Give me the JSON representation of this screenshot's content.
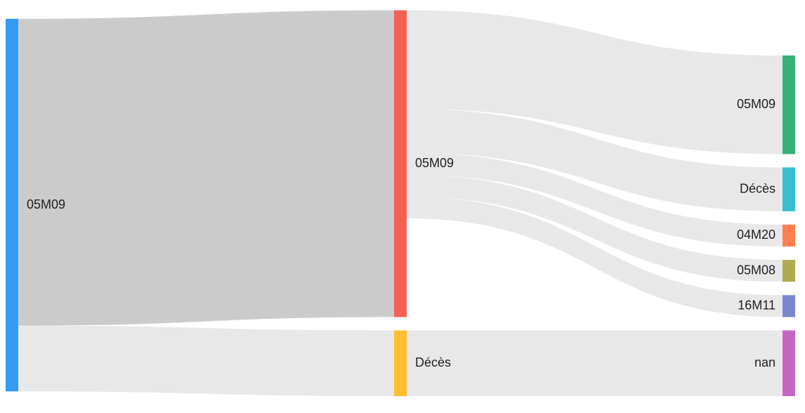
{
  "chart_data": {
    "type": "sankey",
    "nodes": [
      {
        "label": "05M09",
        "color": "#339cf5"
      },
      {
        "label": "05M09",
        "color": "#f46153"
      },
      {
        "label": "Décès",
        "color": "#ffbe33"
      },
      {
        "label": "05M09",
        "color": "#34b27a"
      },
      {
        "label": "Décès",
        "color": "#36bfd0"
      },
      {
        "label": "04M20",
        "color": "#ff7f50"
      },
      {
        "label": "05M08",
        "color": "#b0ab4f"
      },
      {
        "label": "16M11",
        "color": "#7887cf"
      },
      {
        "label": "nan",
        "color": "#c466c4"
      }
    ],
    "links": [
      {
        "source": 0,
        "target": 1,
        "value": 28,
        "color": "#cbcbcb"
      },
      {
        "source": 0,
        "target": 2,
        "value": 6,
        "color": "#e8e8e8"
      },
      {
        "source": 1,
        "target": 3,
        "value": 9,
        "color": "#e8e8e8"
      },
      {
        "source": 1,
        "target": 4,
        "value": 4,
        "color": "#e8e8e8"
      },
      {
        "source": 1,
        "target": 5,
        "value": 2,
        "color": "#e8e8e8"
      },
      {
        "source": 1,
        "target": 6,
        "value": 2,
        "color": "#e8e8e8"
      },
      {
        "source": 1,
        "target": 7,
        "value": 2,
        "color": "#e8e8e8"
      },
      {
        "source": 2,
        "target": 8,
        "value": 6,
        "color": "#e8e8e8"
      }
    ]
  }
}
